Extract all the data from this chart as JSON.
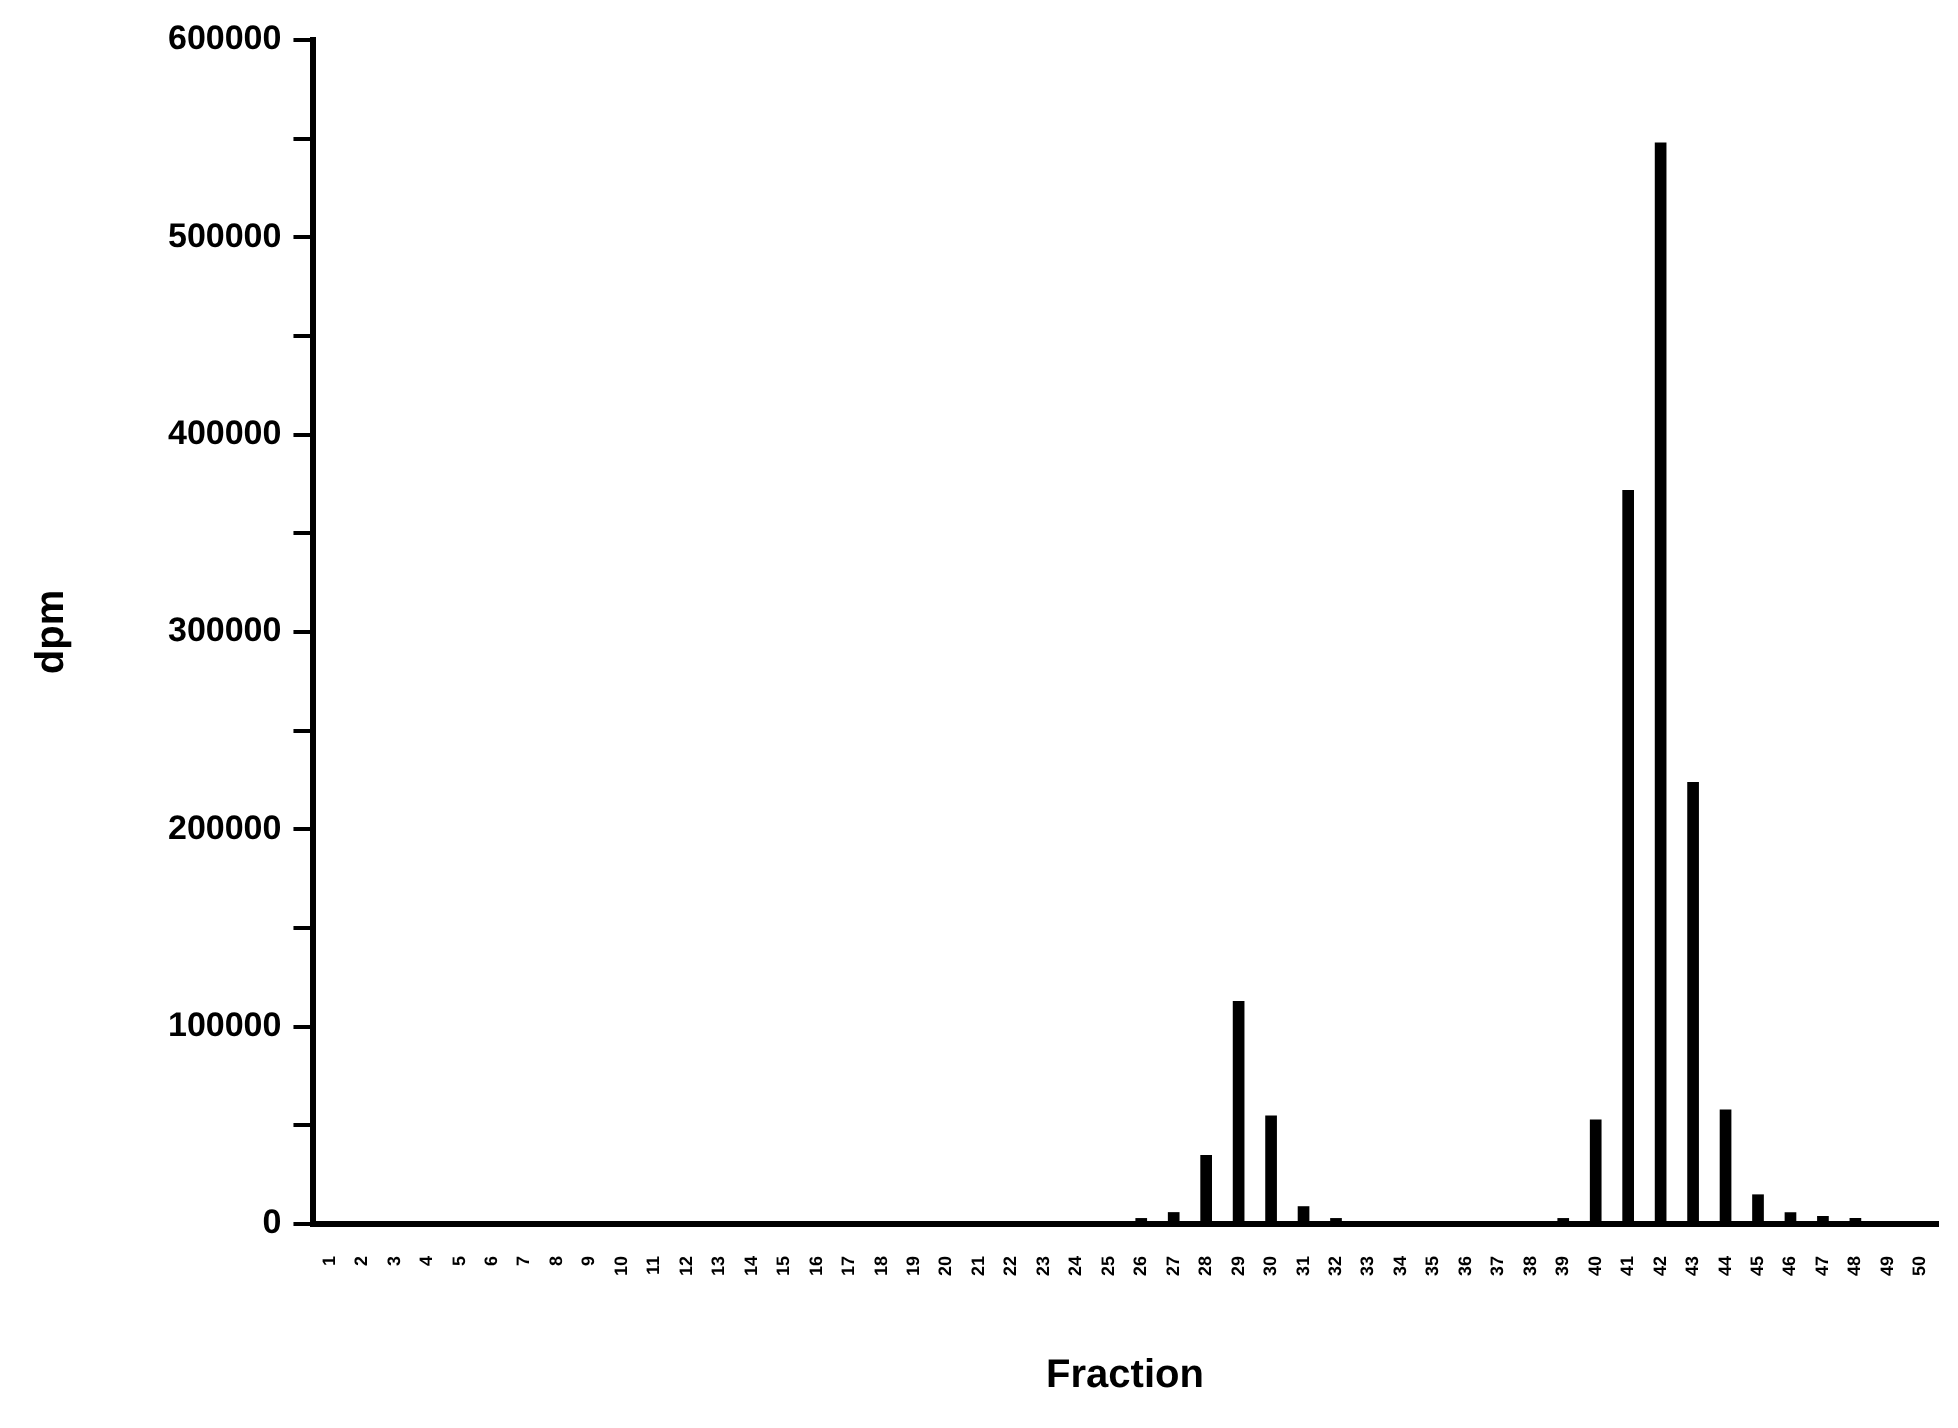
{
  "chart_data": {
    "type": "bar",
    "xlabel": "Fraction",
    "ylabel": "dpm",
    "categories": [
      "1",
      "2",
      "3",
      "4",
      "5",
      "6",
      "7",
      "8",
      "9",
      "10",
      "11",
      "12",
      "13",
      "14",
      "15",
      "16",
      "17",
      "18",
      "19",
      "20",
      "21",
      "22",
      "23",
      "24",
      "25",
      "26",
      "27",
      "28",
      "29",
      "30",
      "31",
      "32",
      "33",
      "34",
      "35",
      "36",
      "37",
      "38",
      "39",
      "40",
      "41",
      "42",
      "43",
      "44",
      "45",
      "46",
      "47",
      "48",
      "49",
      "50"
    ],
    "values": [
      0,
      0,
      0,
      0,
      0,
      0,
      0,
      0,
      0,
      0,
      0,
      0,
      0,
      0,
      0,
      0,
      0,
      0,
      0,
      0,
      0,
      0,
      0,
      0,
      0,
      3000,
      6000,
      35000,
      113000,
      55000,
      9000,
      3000,
      0,
      0,
      0,
      0,
      0,
      0,
      3000,
      53000,
      372000,
      548000,
      224000,
      58000,
      15000,
      6000,
      4000,
      3000,
      0,
      0
    ],
    "color": "#000000",
    "ylim": [
      0,
      600000
    ],
    "yticks": [
      0,
      {
        "value": 50000,
        "label": null
      },
      100000,
      {
        "value": 150000,
        "label": null
      },
      200000,
      {
        "value": 250000,
        "label": null
      },
      300000,
      {
        "value": 350000,
        "label": null
      },
      400000,
      {
        "value": 450000,
        "label": null
      },
      500000,
      {
        "value": 550000,
        "label": null
      },
      600000
    ],
    "grid": false,
    "legend": false
  }
}
